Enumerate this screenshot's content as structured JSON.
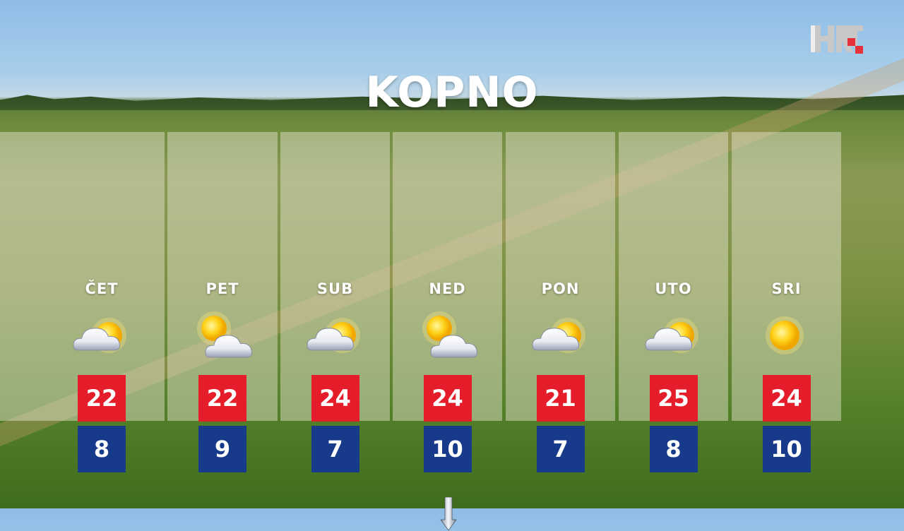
{
  "title": "KOPNO",
  "logo": {
    "text": "HRT",
    "accent": "#e5323a"
  },
  "colors": {
    "high": "#e51d2a",
    "low": "#173b8a"
  },
  "days": [
    {
      "label": "ČET",
      "icon": "cloud-sun-icon",
      "high": "22",
      "low": "8"
    },
    {
      "label": "PET",
      "icon": "sun-cloud-icon",
      "high": "22",
      "low": "9"
    },
    {
      "label": "SUB",
      "icon": "cloud-sun-icon",
      "high": "24",
      "low": "7"
    },
    {
      "label": "NED",
      "icon": "sun-cloud-icon",
      "high": "24",
      "low": "10",
      "extra_icon": "down-arrow-icon"
    },
    {
      "label": "PON",
      "icon": "cloud-sun-icon",
      "high": "21",
      "low": "7"
    },
    {
      "label": "UTO",
      "icon": "cloud-sun-icon",
      "high": "25",
      "low": "8"
    },
    {
      "label": "SRI",
      "icon": "sun-icon",
      "high": "24",
      "low": "10"
    }
  ]
}
